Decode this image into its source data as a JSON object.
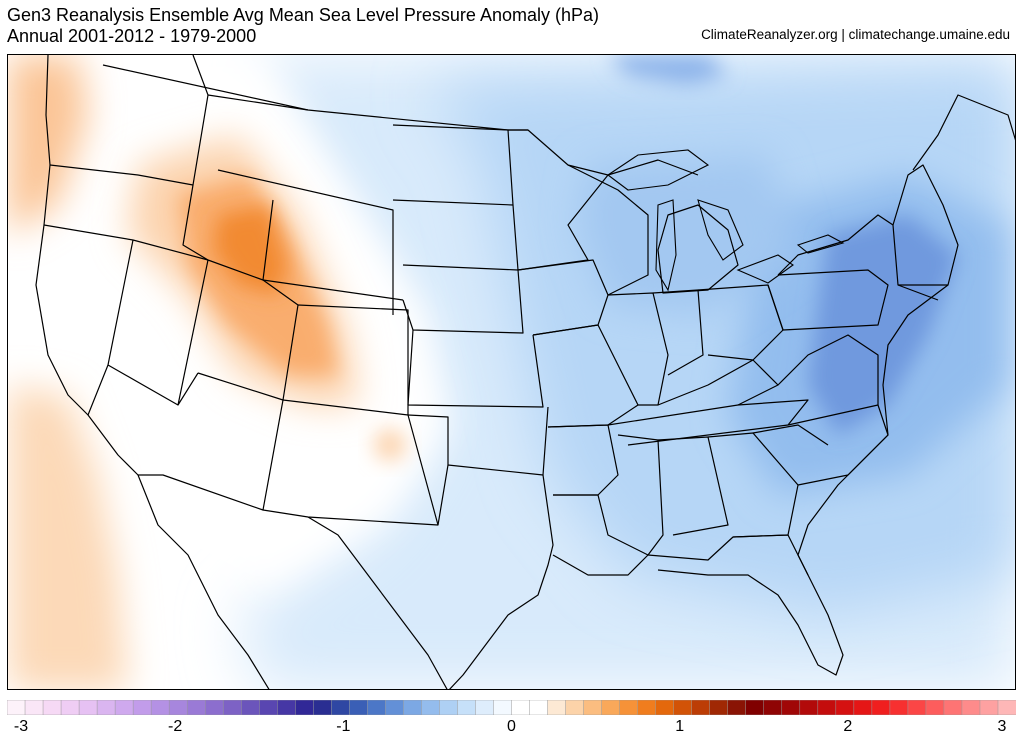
{
  "header": {
    "title": "Gen3 Reanalysis Ensemble Avg Mean Sea Level Pressure Anomaly (hPa)",
    "subtitle": "Annual 2001-2012 - 1979-2000",
    "credit": "ClimateReanalyzer.org | climatechange.umaine.edu"
  },
  "map": {
    "region": "Contiguous United States",
    "variable": "Mean Sea Level Pressure Anomaly",
    "units": "hPa",
    "anomaly_pattern": [
      {
        "area": "Northern Rockies / Idaho-Montana-Wyoming",
        "sign": "positive",
        "approx_max_hpa": 0.6
      },
      {
        "area": "Pacific coast off California",
        "sign": "positive",
        "approx_max_hpa": 0.3
      },
      {
        "area": "Eastern Seaboard (Mid-Atlantic / New England)",
        "sign": "negative",
        "approx_min_hpa": -0.8
      },
      {
        "area": "Great Lakes / Midwest",
        "sign": "negative",
        "approx_min_hpa": -0.4
      }
    ]
  },
  "colorbar": {
    "min": -3,
    "max": 3,
    "tick_labels": [
      "-3",
      "-2",
      "-1",
      "0",
      "1",
      "2",
      "3"
    ],
    "colors": [
      "#fdf2fa",
      "#fae6f7",
      "#f6d9f5",
      "#efcdf4",
      "#e6c1f3",
      "#dab5f0",
      "#cfa9ee",
      "#c29cea",
      "#b491e4",
      "#a786dd",
      "#9a7ad6",
      "#8c6ece",
      "#7d62c5",
      "#6b55bb",
      "#5946b1",
      "#4637a5",
      "#312897",
      "#2a2e92",
      "#2f47a3",
      "#3a5fb6",
      "#4c77c7",
      "#6390d7",
      "#7ca8e4",
      "#94bced",
      "#aed0f4",
      "#c6e0f9",
      "#deedfc",
      "#f3f9ff",
      "#ffffff",
      "#ffffff",
      "#fde9d4",
      "#fcd3a9",
      "#fbbd80",
      "#f9a85a",
      "#f69238",
      "#f07d1e",
      "#e4680c",
      "#d25307",
      "#bc3d05",
      "#a02804",
      "#8a1405",
      "#800000",
      "#8f0404",
      "#a00707",
      "#b20a0a",
      "#c40d0d",
      "#d51111",
      "#e51616",
      "#f01f1f",
      "#f73030",
      "#fb4646",
      "#fd5d5d",
      "#fe7474",
      "#fe8b8b",
      "#fea1a1",
      "#feb7b7"
    ]
  }
}
